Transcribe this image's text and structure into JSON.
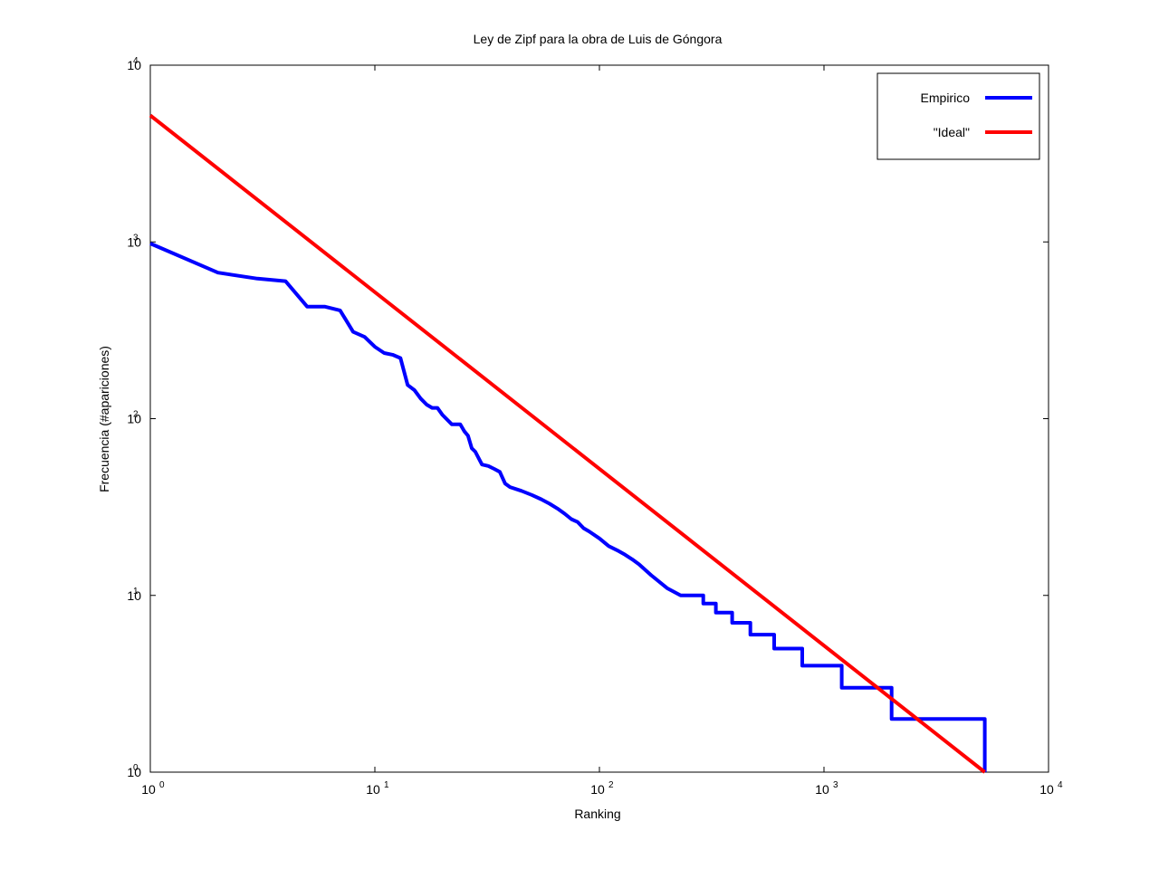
{
  "chart_data": {
    "type": "line",
    "title": "Ley de Zipf para la obra de Luis de Góngora",
    "xlabel": "Ranking",
    "ylabel": "Frecuencia (#apariciones)",
    "x_scale": "log",
    "y_scale": "log",
    "xlim": [
      1,
      10000
    ],
    "ylim": [
      1,
      10000
    ],
    "x_ticks": [
      {
        "value": 1,
        "base": "10",
        "exp": "0"
      },
      {
        "value": 10,
        "base": "10",
        "exp": "1"
      },
      {
        "value": 100,
        "base": "10",
        "exp": "2"
      },
      {
        "value": 1000,
        "base": "10",
        "exp": "3"
      },
      {
        "value": 10000,
        "base": "10",
        "exp": "4"
      }
    ],
    "y_ticks": [
      {
        "value": 1,
        "base": "10",
        "exp": "0"
      },
      {
        "value": 10,
        "base": "10",
        "exp": "1"
      },
      {
        "value": 100,
        "base": "10",
        "exp": "2"
      },
      {
        "value": 1000,
        "base": "10",
        "exp": "3"
      },
      {
        "value": 10000,
        "base": "10",
        "exp": "4"
      }
    ],
    "grid": false,
    "legend_position": "top-right",
    "series": [
      {
        "name": "Empirico",
        "color": "#0000ff",
        "step": true,
        "x": [
          1,
          2,
          3,
          4,
          5,
          6,
          7,
          8,
          9,
          10,
          11,
          12,
          13,
          14,
          15,
          16,
          17,
          18,
          19,
          20,
          22,
          24,
          25,
          26,
          27,
          28,
          30,
          32,
          34,
          36,
          38,
          40,
          45,
          50,
          55,
          60,
          65,
          70,
          75,
          80,
          85,
          90,
          100,
          110,
          120,
          130,
          140,
          150,
          170,
          200,
          230,
          290,
          330,
          390,
          470,
          600,
          800,
          1200,
          2000,
          5200
        ],
        "y": [
          980,
          670,
          620,
          600,
          430,
          430,
          410,
          310,
          290,
          255,
          235,
          230,
          220,
          155,
          145,
          130,
          120,
          115,
          115,
          105,
          93,
          93,
          85,
          80,
          68,
          65,
          55,
          54,
          52,
          50,
          43,
          41,
          39,
          37,
          35,
          33,
          31,
          29,
          27,
          26,
          24,
          23,
          21,
          19,
          18,
          17,
          16,
          15,
          13,
          11,
          10,
          9,
          8,
          7,
          6,
          5,
          4,
          3,
          2,
          1
        ]
      },
      {
        "name": "\"Ideal\"",
        "color": "#ff0000",
        "step": false,
        "x": [
          1,
          5200
        ],
        "y": [
          5200,
          1
        ]
      }
    ]
  }
}
